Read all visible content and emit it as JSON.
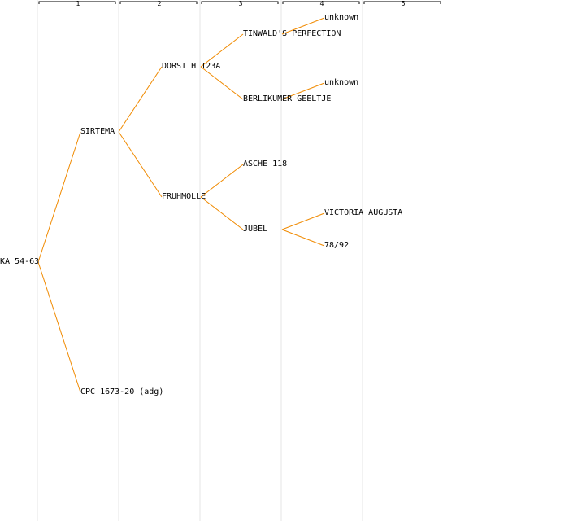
{
  "columns": [
    "1",
    "2",
    "3",
    "4",
    "5"
  ],
  "colors": {
    "edge": "#f08a00",
    "grid": "#e6e6e6",
    "text": "#000000"
  },
  "nodes": {
    "root": "KA 54-63",
    "g1_sire": "SIRTEMA",
    "g1_dam": "CPC 1673-20 (adg)",
    "g2_sire": "DORST H 123A",
    "g2_dam": "FRUHMOLLE",
    "g3_a": "TINWALD'S PERFECTION",
    "g3_b": "BERLIKUMER GEELTJE",
    "g3_c": "ASCHE 118",
    "g3_d": "JUBEL",
    "g4_a": "unknown",
    "g4_b": "unknown",
    "g4_c": "VICTORIA AUGUSTA",
    "g4_d": "78/92"
  },
  "edges": [
    [
      "root",
      "g1_sire"
    ],
    [
      "root",
      "g1_dam"
    ],
    [
      "g1_sire",
      "g2_sire"
    ],
    [
      "g1_sire",
      "g2_dam"
    ],
    [
      "g2_sire",
      "g3_a"
    ],
    [
      "g2_sire",
      "g3_b"
    ],
    [
      "g2_dam",
      "g3_c"
    ],
    [
      "g2_dam",
      "g3_d"
    ],
    [
      "g3_a",
      "g4_a"
    ],
    [
      "g3_b",
      "g4_b"
    ],
    [
      "g3_d",
      "g4_c"
    ],
    [
      "g3_d",
      "g4_d"
    ]
  ]
}
